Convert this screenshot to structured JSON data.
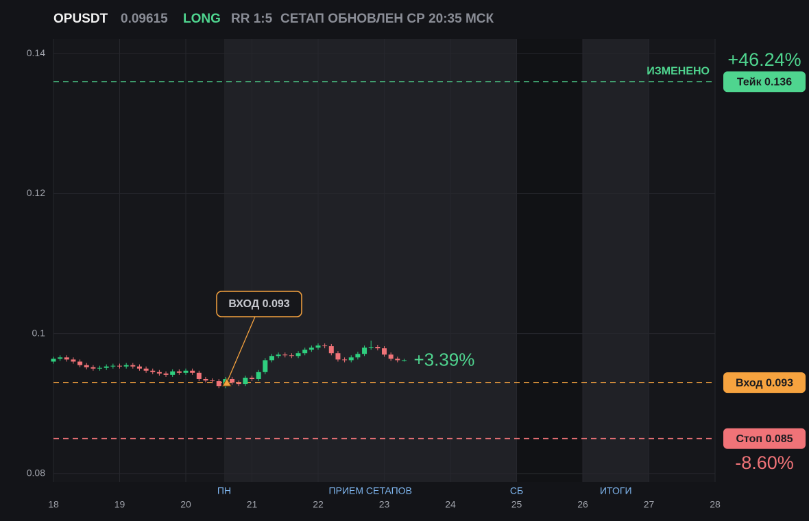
{
  "chart_data": {
    "type": "candlestick",
    "header": {
      "symbol": "OPUSDT",
      "price": 0.09615,
      "side": "LONG",
      "rr": "RR 1:5",
      "updated": "СЕТАП ОБНОВЛЕН СР 20:35 МСК"
    },
    "xlim": [
      18,
      28
    ],
    "xticks": [
      18,
      19,
      20,
      21,
      22,
      23,
      24,
      25,
      26,
      27,
      28
    ],
    "ylim": [
      0.0788,
      0.1421
    ],
    "yticks": [
      0.08,
      0.1,
      0.12,
      0.14
    ],
    "grid": true,
    "up_color": "#2fcf7f",
    "down_color": "#f07378",
    "regions": [
      {
        "start": 20.58,
        "end": 25,
        "color": "#202126"
      },
      {
        "start": 26,
        "end": 27,
        "color": "#202126"
      }
    ],
    "region_labels": [
      {
        "x": 20.58,
        "label": "ПН"
      },
      {
        "x": 22.79,
        "label": "ПРИЕМ СЕТАПОВ"
      },
      {
        "x": 25,
        "label": "СБ"
      },
      {
        "x": 26.5,
        "label": "ИТОГИ"
      }
    ],
    "x": [
      18.0,
      18.1,
      18.2,
      18.3,
      18.4,
      18.5,
      18.6,
      18.7,
      18.8,
      18.9,
      19.0,
      19.1,
      19.2,
      19.3,
      19.4,
      19.5,
      19.6,
      19.7,
      19.8,
      19.9,
      20.0,
      20.1,
      20.2,
      20.3,
      20.4,
      20.5,
      20.6,
      20.7,
      20.8,
      20.9,
      21.0,
      21.1,
      21.2,
      21.3,
      21.4,
      21.5,
      21.6,
      21.7,
      21.8,
      21.9,
      22.0,
      22.1,
      22.2,
      22.3,
      22.4,
      22.5,
      22.6,
      22.7,
      22.8,
      22.9,
      23.0,
      23.1,
      23.2,
      23.3
    ],
    "open": [
      0.096,
      0.0964,
      0.0966,
      0.0963,
      0.096,
      0.0955,
      0.0952,
      0.095,
      0.0951,
      0.0953,
      0.0954,
      0.0953,
      0.0955,
      0.0953,
      0.095,
      0.0947,
      0.0945,
      0.0943,
      0.0941,
      0.0946,
      0.0944,
      0.0947,
      0.0944,
      0.0935,
      0.0933,
      0.0932,
      0.0925,
      0.0935,
      0.093,
      0.0928,
      0.0937,
      0.0935,
      0.0945,
      0.0962,
      0.0968,
      0.097,
      0.0969,
      0.0968,
      0.0972,
      0.0977,
      0.098,
      0.0983,
      0.0982,
      0.0972,
      0.0963,
      0.0962,
      0.0966,
      0.0971,
      0.098,
      0.0981,
      0.0979,
      0.097,
      0.0964,
      0.0962
    ],
    "high": [
      0.0967,
      0.0969,
      0.0969,
      0.0966,
      0.0963,
      0.0958,
      0.0955,
      0.0954,
      0.0956,
      0.0957,
      0.0957,
      0.0958,
      0.0958,
      0.0956,
      0.0953,
      0.095,
      0.0948,
      0.0946,
      0.0949,
      0.0949,
      0.095,
      0.095,
      0.0947,
      0.0938,
      0.0936,
      0.0935,
      0.0938,
      0.0938,
      0.0933,
      0.094,
      0.094,
      0.0948,
      0.0965,
      0.0971,
      0.0973,
      0.0973,
      0.0972,
      0.0975,
      0.098,
      0.0983,
      0.0986,
      0.0986,
      0.0985,
      0.0975,
      0.0966,
      0.0969,
      0.0974,
      0.0983,
      0.099,
      0.0984,
      0.0982,
      0.0973,
      0.0967,
      0.0964
    ],
    "low": [
      0.0957,
      0.0961,
      0.096,
      0.0957,
      0.0952,
      0.0949,
      0.0947,
      0.0947,
      0.0948,
      0.095,
      0.095,
      0.095,
      0.095,
      0.0947,
      0.0944,
      0.0942,
      0.094,
      0.0938,
      0.0938,
      0.0941,
      0.0941,
      0.0941,
      0.0932,
      0.093,
      0.0929,
      0.0922,
      0.0922,
      0.0927,
      0.0925,
      0.0925,
      0.0932,
      0.0932,
      0.0942,
      0.0959,
      0.0965,
      0.0966,
      0.0965,
      0.0965,
      0.0969,
      0.0974,
      0.0977,
      0.0979,
      0.0969,
      0.096,
      0.0959,
      0.0959,
      0.0963,
      0.0968,
      0.0977,
      0.0976,
      0.0967,
      0.0961,
      0.0959,
      0.096
    ],
    "close": [
      0.0964,
      0.0966,
      0.0963,
      0.096,
      0.0955,
      0.0952,
      0.095,
      0.0951,
      0.0953,
      0.0954,
      0.0953,
      0.0955,
      0.0953,
      0.095,
      0.0947,
      0.0945,
      0.0943,
      0.0941,
      0.0946,
      0.0944,
      0.0947,
      0.0944,
      0.0935,
      0.0933,
      0.0932,
      0.0925,
      0.0935,
      0.093,
      0.0928,
      0.0937,
      0.0935,
      0.0945,
      0.0962,
      0.0968,
      0.097,
      0.0969,
      0.0968,
      0.0972,
      0.0977,
      0.098,
      0.0983,
      0.0982,
      0.0972,
      0.0963,
      0.0962,
      0.0966,
      0.0971,
      0.098,
      0.0981,
      0.0979,
      0.097,
      0.0964,
      0.0962,
      0.0962
    ],
    "levels": [
      {
        "value": 0.136,
        "label": "Тейк 0.136",
        "color": "#4fd58f"
      },
      {
        "value": 0.093,
        "label": "Вход 0.093",
        "color": "#f6a33f"
      },
      {
        "value": 0.085,
        "label": "Стоп 0.085",
        "color": "#f07378"
      }
    ],
    "take_note": "ИЗМЕНЕНО",
    "take_pct": {
      "value": 46.24,
      "label": "+46.24%"
    },
    "stop_pct": {
      "value": -8.6,
      "label": "-8.60%"
    },
    "current_pct": {
      "value": 3.39,
      "label": "+3.39%"
    },
    "entry_marker": {
      "x": 20.62,
      "y": 0.093,
      "label": "ВХОД 0.093"
    }
  }
}
